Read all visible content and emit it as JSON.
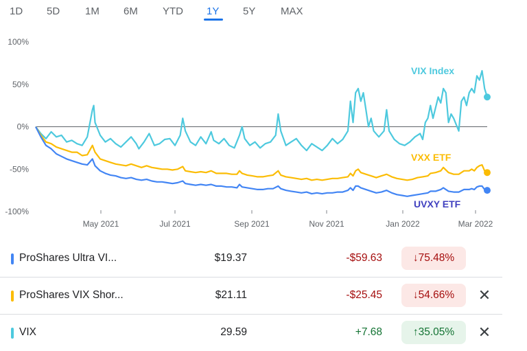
{
  "tabs": [
    "1D",
    "5D",
    "1M",
    "6M",
    "YTD",
    "1Y",
    "5Y",
    "MAX"
  ],
  "active_tab": "1Y",
  "colors": {
    "vix": "#4dc9de",
    "vxx": "#fbbc04",
    "uvxy": "#4285f4",
    "accent": "#1a73e8",
    "negative": "#a50e0e",
    "positive": "#137333"
  },
  "chart_data": {
    "type": "line",
    "y_tick_labels": [
      "100%",
      "50%",
      "0%",
      "-50%",
      "-100%"
    ],
    "y_ticks": [
      100,
      50,
      0,
      -50,
      -100
    ],
    "ylim": [
      -100,
      100
    ],
    "x_tick_labels": [
      "May 2021",
      "Jul 2021",
      "Sep 2021",
      "Nov 2021",
      "Jan 2022",
      "Mar 2022"
    ],
    "baseline": 0,
    "series": [
      {
        "name": "VIX Index",
        "color_key": "vix",
        "points": [
          [
            0,
            0
          ],
          [
            4,
            -8
          ],
          [
            8,
            -14
          ],
          [
            12,
            -6
          ],
          [
            16,
            -12
          ],
          [
            20,
            -10
          ],
          [
            24,
            -18
          ],
          [
            28,
            -16
          ],
          [
            32,
            -20
          ],
          [
            36,
            -22
          ],
          [
            40,
            -12
          ],
          [
            44,
            20
          ],
          [
            45,
            25
          ],
          [
            46,
            5
          ],
          [
            50,
            -10
          ],
          [
            54,
            -18
          ],
          [
            58,
            -14
          ],
          [
            62,
            -20
          ],
          [
            66,
            -24
          ],
          [
            70,
            -18
          ],
          [
            74,
            -12
          ],
          [
            78,
            -20
          ],
          [
            80,
            -26
          ],
          [
            84,
            -18
          ],
          [
            88,
            -8
          ],
          [
            92,
            -22
          ],
          [
            96,
            -20
          ],
          [
            100,
            -15
          ],
          [
            104,
            -14
          ],
          [
            108,
            -22
          ],
          [
            112,
            -10
          ],
          [
            114,
            10
          ],
          [
            116,
            -5
          ],
          [
            120,
            -18
          ],
          [
            124,
            -22
          ],
          [
            128,
            -12
          ],
          [
            132,
            -20
          ],
          [
            136,
            -6
          ],
          [
            138,
            -16
          ],
          [
            142,
            -20
          ],
          [
            146,
            -14
          ],
          [
            150,
            -22
          ],
          [
            154,
            -25
          ],
          [
            158,
            -10
          ],
          [
            160,
            0
          ],
          [
            162,
            -14
          ],
          [
            166,
            -22
          ],
          [
            170,
            -18
          ],
          [
            174,
            -25
          ],
          [
            178,
            -20
          ],
          [
            182,
            -18
          ],
          [
            186,
            -10
          ],
          [
            188,
            15
          ],
          [
            190,
            -5
          ],
          [
            194,
            -22
          ],
          [
            198,
            -18
          ],
          [
            202,
            -14
          ],
          [
            206,
            -22
          ],
          [
            210,
            -28
          ],
          [
            214,
            -20
          ],
          [
            218,
            -24
          ],
          [
            222,
            -28
          ],
          [
            226,
            -22
          ],
          [
            230,
            -14
          ],
          [
            234,
            -20
          ],
          [
            238,
            -15
          ],
          [
            242,
            -5
          ],
          [
            244,
            30
          ],
          [
            246,
            5
          ],
          [
            248,
            40
          ],
          [
            250,
            45
          ],
          [
            252,
            30
          ],
          [
            254,
            40
          ],
          [
            256,
            20
          ],
          [
            258,
            0
          ],
          [
            260,
            10
          ],
          [
            262,
            -5
          ],
          [
            266,
            -12
          ],
          [
            270,
            -5
          ],
          [
            272,
            20
          ],
          [
            274,
            -5
          ],
          [
            278,
            -15
          ],
          [
            282,
            -20
          ],
          [
            286,
            -22
          ],
          [
            290,
            -18
          ],
          [
            294,
            -12
          ],
          [
            298,
            -8
          ],
          [
            300,
            -15
          ],
          [
            302,
            5
          ],
          [
            304,
            10
          ],
          [
            306,
            25
          ],
          [
            308,
            10
          ],
          [
            312,
            35
          ],
          [
            314,
            28
          ],
          [
            316,
            45
          ],
          [
            318,
            40
          ],
          [
            320,
            5
          ],
          [
            322,
            15
          ],
          [
            324,
            10
          ],
          [
            328,
            -5
          ],
          [
            330,
            30
          ],
          [
            332,
            35
          ],
          [
            334,
            25
          ],
          [
            336,
            40
          ],
          [
            338,
            45
          ],
          [
            340,
            40
          ],
          [
            342,
            60
          ],
          [
            344,
            55
          ],
          [
            346,
            66
          ],
          [
            348,
            45
          ],
          [
            350,
            35
          ]
        ]
      },
      {
        "name": "VXX ETF",
        "color_key": "vxx",
        "points": [
          [
            0,
            0
          ],
          [
            4,
            -10
          ],
          [
            8,
            -18
          ],
          [
            12,
            -20
          ],
          [
            16,
            -24
          ],
          [
            20,
            -26
          ],
          [
            24,
            -28
          ],
          [
            28,
            -30
          ],
          [
            32,
            -30
          ],
          [
            36,
            -34
          ],
          [
            40,
            -33
          ],
          [
            44,
            -22
          ],
          [
            46,
            -30
          ],
          [
            50,
            -38
          ],
          [
            54,
            -40
          ],
          [
            58,
            -42
          ],
          [
            62,
            -44
          ],
          [
            66,
            -45
          ],
          [
            70,
            -46
          ],
          [
            74,
            -44
          ],
          [
            78,
            -46
          ],
          [
            82,
            -48
          ],
          [
            86,
            -46
          ],
          [
            90,
            -48
          ],
          [
            94,
            -49
          ],
          [
            98,
            -50
          ],
          [
            102,
            -50
          ],
          [
            106,
            -51
          ],
          [
            110,
            -50
          ],
          [
            114,
            -47
          ],
          [
            116,
            -52
          ],
          [
            120,
            -53
          ],
          [
            124,
            -54
          ],
          [
            128,
            -53
          ],
          [
            132,
            -54
          ],
          [
            136,
            -52
          ],
          [
            140,
            -55
          ],
          [
            144,
            -55
          ],
          [
            148,
            -55
          ],
          [
            152,
            -56
          ],
          [
            156,
            -56
          ],
          [
            158,
            -52
          ],
          [
            160,
            -55
          ],
          [
            164,
            -57
          ],
          [
            168,
            -58
          ],
          [
            172,
            -59
          ],
          [
            176,
            -59
          ],
          [
            180,
            -58
          ],
          [
            184,
            -57
          ],
          [
            188,
            -52
          ],
          [
            190,
            -57
          ],
          [
            194,
            -59
          ],
          [
            198,
            -60
          ],
          [
            202,
            -61
          ],
          [
            206,
            -62
          ],
          [
            210,
            -61
          ],
          [
            214,
            -63
          ],
          [
            218,
            -62
          ],
          [
            222,
            -63
          ],
          [
            226,
            -62
          ],
          [
            230,
            -61
          ],
          [
            234,
            -61
          ],
          [
            238,
            -60
          ],
          [
            242,
            -59
          ],
          [
            244,
            -55
          ],
          [
            246,
            -58
          ],
          [
            248,
            -52
          ],
          [
            250,
            -50
          ],
          [
            252,
            -54
          ],
          [
            256,
            -56
          ],
          [
            260,
            -58
          ],
          [
            264,
            -60
          ],
          [
            268,
            -58
          ],
          [
            272,
            -56
          ],
          [
            276,
            -59
          ],
          [
            280,
            -61
          ],
          [
            284,
            -62
          ],
          [
            288,
            -63
          ],
          [
            292,
            -62
          ],
          [
            296,
            -60
          ],
          [
            300,
            -59
          ],
          [
            304,
            -58
          ],
          [
            306,
            -55
          ],
          [
            310,
            -54
          ],
          [
            314,
            -52
          ],
          [
            316,
            -48
          ],
          [
            320,
            -54
          ],
          [
            324,
            -56
          ],
          [
            328,
            -56
          ],
          [
            332,
            -52
          ],
          [
            336,
            -52
          ],
          [
            338,
            -50
          ],
          [
            340,
            -52
          ],
          [
            342,
            -48
          ],
          [
            344,
            -46
          ],
          [
            346,
            -45
          ],
          [
            348,
            -52
          ],
          [
            350,
            -54
          ]
        ]
      },
      {
        "name": "UVXY ETF",
        "color_key": "uvxy",
        "points": [
          [
            0,
            0
          ],
          [
            4,
            -12
          ],
          [
            8,
            -22
          ],
          [
            12,
            -26
          ],
          [
            16,
            -32
          ],
          [
            20,
            -35
          ],
          [
            24,
            -38
          ],
          [
            28,
            -40
          ],
          [
            32,
            -42
          ],
          [
            36,
            -44
          ],
          [
            40,
            -45
          ],
          [
            44,
            -38
          ],
          [
            46,
            -46
          ],
          [
            50,
            -52
          ],
          [
            54,
            -55
          ],
          [
            58,
            -57
          ],
          [
            62,
            -58
          ],
          [
            66,
            -60
          ],
          [
            70,
            -61
          ],
          [
            74,
            -60
          ],
          [
            78,
            -62
          ],
          [
            82,
            -63
          ],
          [
            86,
            -62
          ],
          [
            90,
            -64
          ],
          [
            94,
            -65
          ],
          [
            98,
            -65
          ],
          [
            102,
            -66
          ],
          [
            106,
            -67
          ],
          [
            110,
            -66
          ],
          [
            114,
            -64
          ],
          [
            116,
            -67
          ],
          [
            120,
            -68
          ],
          [
            124,
            -69
          ],
          [
            128,
            -68
          ],
          [
            132,
            -69
          ],
          [
            136,
            -68
          ],
          [
            140,
            -70
          ],
          [
            144,
            -70
          ],
          [
            148,
            -71
          ],
          [
            152,
            -71
          ],
          [
            156,
            -72
          ],
          [
            158,
            -68
          ],
          [
            160,
            -71
          ],
          [
            164,
            -72
          ],
          [
            168,
            -73
          ],
          [
            172,
            -74
          ],
          [
            176,
            -74
          ],
          [
            180,
            -73
          ],
          [
            184,
            -73
          ],
          [
            188,
            -70
          ],
          [
            190,
            -73
          ],
          [
            194,
            -75
          ],
          [
            198,
            -76
          ],
          [
            202,
            -77
          ],
          [
            206,
            -78
          ],
          [
            210,
            -77
          ],
          [
            214,
            -79
          ],
          [
            218,
            -78
          ],
          [
            222,
            -79
          ],
          [
            226,
            -78
          ],
          [
            230,
            -78
          ],
          [
            234,
            -77
          ],
          [
            238,
            -77
          ],
          [
            242,
            -75
          ],
          [
            244,
            -72
          ],
          [
            246,
            -75
          ],
          [
            248,
            -70
          ],
          [
            250,
            -70
          ],
          [
            252,
            -72
          ],
          [
            256,
            -74
          ],
          [
            260,
            -76
          ],
          [
            264,
            -78
          ],
          [
            268,
            -77
          ],
          [
            272,
            -75
          ],
          [
            276,
            -78
          ],
          [
            280,
            -80
          ],
          [
            284,
            -81
          ],
          [
            288,
            -82
          ],
          [
            292,
            -81
          ],
          [
            296,
            -80
          ],
          [
            300,
            -79
          ],
          [
            304,
            -78
          ],
          [
            306,
            -76
          ],
          [
            310,
            -76
          ],
          [
            314,
            -74
          ],
          [
            316,
            -72
          ],
          [
            320,
            -76
          ],
          [
            324,
            -77
          ],
          [
            328,
            -77
          ],
          [
            332,
            -74
          ],
          [
            336,
            -74
          ],
          [
            338,
            -73
          ],
          [
            340,
            -74
          ],
          [
            342,
            -71
          ],
          [
            344,
            -70
          ],
          [
            346,
            -70
          ],
          [
            348,
            -74
          ],
          [
            350,
            -75
          ]
        ]
      }
    ]
  },
  "holdings": [
    {
      "name": "ProShares Ultra VI...",
      "price": "$19.37",
      "change": "-$59.63",
      "pct": "↓75.48%",
      "direction": "neg",
      "color_key": "uvxy",
      "removable": false
    },
    {
      "name": "ProShares VIX Shor...",
      "price": "$21.11",
      "change": "-$25.45",
      "pct": "↓54.66%",
      "direction": "neg",
      "color_key": "vxx",
      "removable": true
    },
    {
      "name": "VIX",
      "price": "29.59",
      "change": "+7.68",
      "pct": "↑35.05%",
      "direction": "pos",
      "color_key": "vix",
      "removable": true
    }
  ],
  "close_glyph": "✕"
}
